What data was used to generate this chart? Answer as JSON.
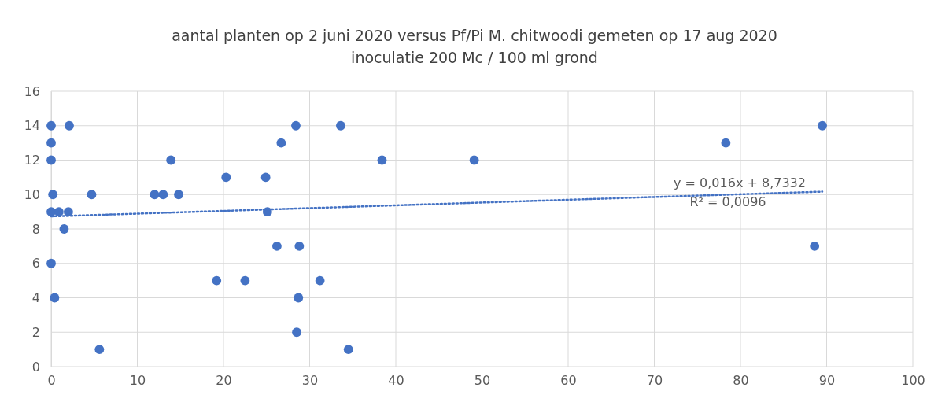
{
  "chart_data": {
    "type": "scatter",
    "title": "aantal planten op 2 juni 2020 versus Pf/Pi M. chitwoodi gemeten op 17 aug 2020",
    "subtitle": "inoculatie 200 Mc / 100 ml grond",
    "xlim": [
      0,
      100
    ],
    "xticks": [
      0,
      10,
      20,
      30,
      40,
      50,
      60,
      70,
      80,
      90,
      100
    ],
    "ylim": [
      0,
      16
    ],
    "yticks": [
      0,
      2,
      4,
      6,
      8,
      10,
      12,
      14,
      16
    ],
    "grid": true,
    "series": [
      {
        "color": "#4472c4",
        "marker": "circle",
        "x": [
          0,
          0,
          0,
          0.2,
          0,
          0,
          0.4,
          0.9,
          1.5,
          2,
          2.1,
          4.7,
          5.6,
          12,
          13,
          13.9,
          14.8,
          19.2,
          20.3,
          22.5,
          24.9,
          25.1,
          26.2,
          26.7,
          28.4,
          28.5,
          28.7,
          28.8,
          31.2,
          33.6,
          34.5,
          38.4,
          49.1,
          78.3,
          88.6,
          89.5
        ],
        "values": [
          14,
          13,
          12,
          10,
          9,
          6,
          4,
          9,
          8,
          9,
          14,
          10,
          1,
          10,
          10,
          12,
          10,
          5,
          11,
          5,
          11,
          9,
          7,
          13,
          14,
          2,
          4,
          7,
          5,
          14,
          1,
          12,
          12,
          13,
          7,
          14
        ]
      },
      {
        "type": "line",
        "color": "#4472c4",
        "marker": "none",
        "line_style": "dotted",
        "x": [
          0,
          89.5
        ],
        "values": [
          8.73,
          10.17
        ]
      }
    ],
    "annotations": [
      "y = 0,016x + 8,7332",
      "R² = 0,0096"
    ]
  }
}
